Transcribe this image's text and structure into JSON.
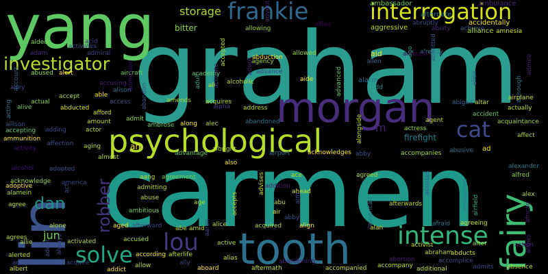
{
  "background_color": "#000000",
  "palette": "viridis",
  "words": [
    {
      "text": "graham",
      "color": "#2a9d8f"
    },
    {
      "text": "carmen",
      "color": "#1f9a8a"
    },
    {
      "text": "yang",
      "color": "#5ec962"
    },
    {
      "text": "lin",
      "color": "#3b528b"
    },
    {
      "text": "tooth",
      "color": "#2c728e"
    },
    {
      "text": "morgan",
      "color": "#472d7b"
    },
    {
      "text": "psychological",
      "color": "#b5de2b"
    },
    {
      "text": "fairy",
      "color": "#3fbc73"
    },
    {
      "text": "interrogation",
      "color": "#d8e219"
    },
    {
      "text": "frankie",
      "color": "#31688e"
    },
    {
      "text": "investigator",
      "color": "#b5de2b"
    },
    {
      "text": "intense",
      "color": "#35b779"
    },
    {
      "text": "solve",
      "color": "#22a884"
    },
    {
      "text": "lou",
      "color": "#453781"
    },
    {
      "text": "cat",
      "color": "#3e4a89"
    },
    {
      "text": "dan",
      "color": "#21918c"
    },
    {
      "text": "robber",
      "color": "#46337e"
    },
    {
      "text": "storage",
      "color": "#addc30"
    },
    {
      "text": "firefight",
      "color": "#25848e"
    },
    {
      "text": "bitter",
      "color": "#8fd744"
    },
    {
      "text": "m",
      "color": "#482173"
    },
    {
      "text": "jun",
      "color": "#7ad151"
    },
    {
      "text": "ambassador",
      "color": "#6ece58"
    },
    {
      "text": "ambulance",
      "color": "#482878"
    },
    {
      "text": "alternate",
      "color": "#287c8e"
    },
    {
      "text": "abruptly",
      "color": "#3e4989"
    },
    {
      "text": "adventure",
      "color": "#482475"
    },
    {
      "text": "affair",
      "color": "#440154"
    },
    {
      "text": "aggressive",
      "color": "#c2df23"
    },
    {
      "text": "ability",
      "color": "#472c7a"
    },
    {
      "text": "achieve",
      "color": "#38598c"
    },
    {
      "text": "accidentally",
      "color": "#fde725"
    },
    {
      "text": "alliance",
      "color": "#addc30"
    },
    {
      "text": "amnesia",
      "color": "#d2e21b"
    },
    {
      "text": "acid",
      "color": "#443a83"
    },
    {
      "text": "aided",
      "color": "#86d549"
    },
    {
      "text": "activates",
      "color": "#3b528b"
    },
    {
      "text": "adam",
      "color": "#472d7b"
    },
    {
      "text": "admiral",
      "color": "#414487"
    },
    {
      "text": "allowing",
      "color": "#9bd93c"
    },
    {
      "text": "allowed",
      "color": "#9bd93c"
    },
    {
      "text": "abduction",
      "color": "#fde725"
    },
    {
      "text": "agency",
      "color": "#a5db36"
    },
    {
      "text": "aid",
      "color": "#fde725"
    },
    {
      "text": "allen",
      "color": "#31688e"
    },
    {
      "text": "already",
      "color": "#2a788e"
    },
    {
      "text": "ambush",
      "color": "#440154"
    },
    {
      "text": "admitted",
      "color": "#3b528b"
    },
    {
      "text": "ago",
      "color": "#1fa088"
    },
    {
      "text": "admire",
      "color": "#481f70"
    },
    {
      "text": "accepted",
      "color": "#b8de29"
    },
    {
      "text": "adopt",
      "color": "#482475"
    },
    {
      "text": "aircraft",
      "color": "#75d054"
    },
    {
      "text": "alert",
      "color": "#fde725"
    },
    {
      "text": "abused",
      "color": "#8fd744"
    },
    {
      "text": "alley",
      "color": "#3e4a89"
    },
    {
      "text": "account",
      "color": "#33638d"
    },
    {
      "text": "academy",
      "color": "#5ec962"
    },
    {
      "text": "adult",
      "color": "#29af7f"
    },
    {
      "text": "ali",
      "color": "#c8e020"
    },
    {
      "text": "alcoholic",
      "color": "#b8de29"
    },
    {
      "text": "advance",
      "color": "#3f4788"
    },
    {
      "text": "aide",
      "color": "#fde725"
    },
    {
      "text": "alarm",
      "color": "#2d708e"
    },
    {
      "text": "add",
      "color": "#1e9b8a"
    },
    {
      "text": "advanced",
      "color": "#5ec962"
    },
    {
      "text": "alien",
      "color": "#38598c"
    },
    {
      "text": "although",
      "color": "#2c728e"
    },
    {
      "text": "admission",
      "color": "#3b0f70"
    },
    {
      "text": "accusing",
      "color": "#482071"
    },
    {
      "text": "access",
      "color": "#3e4989"
    },
    {
      "text": "able",
      "color": "#fde725"
    },
    {
      "text": "alison",
      "color": "#2c728e"
    },
    {
      "text": "acting",
      "color": "#2a788e"
    },
    {
      "text": "accept",
      "color": "#a2da37"
    },
    {
      "text": "actual",
      "color": "#8fd744"
    },
    {
      "text": "alive",
      "color": "#73d056"
    },
    {
      "text": "abducted",
      "color": "#d8e219"
    },
    {
      "text": "afford",
      "color": "#d2e21b"
    },
    {
      "text": "amount",
      "color": "#b5de2b"
    },
    {
      "text": "admit",
      "color": "#8fd744"
    },
    {
      "text": "abandon",
      "color": "#3b528b"
    },
    {
      "text": "amends",
      "color": "#addc30"
    },
    {
      "text": "acquires",
      "color": "#b5de2b"
    },
    {
      "text": "activate",
      "color": "#46337e"
    },
    {
      "text": "alpha",
      "color": "#443a83"
    },
    {
      "text": "address",
      "color": "#b8de29"
    },
    {
      "text": "abigail",
      "color": "#33638d"
    },
    {
      "text": "airplane",
      "color": "#c8e020"
    },
    {
      "text": "altar",
      "color": "#bddf26"
    },
    {
      "text": "actually",
      "color": "#c2df23"
    },
    {
      "text": "accident",
      "color": "#5ec962"
    },
    {
      "text": "acquaintance",
      "color": "#9bd93c"
    },
    {
      "text": "allison",
      "color": "#3b528b"
    },
    {
      "text": "adding",
      "color": "#3e4a89"
    },
    {
      "text": "actor",
      "color": "#bddf26"
    },
    {
      "text": "ambrose",
      "color": "#6ece58"
    },
    {
      "text": "along",
      "color": "#fde725"
    },
    {
      "text": "alec",
      "color": "#b8de29"
    },
    {
      "text": "abandoned",
      "color": "#2a788e"
    },
    {
      "text": "actress",
      "color": "#95d840"
    },
    {
      "text": "agent",
      "color": "#c8e020"
    },
    {
      "text": "affect",
      "color": "#addc30"
    },
    {
      "text": "accepting",
      "color": "#5ec962"
    },
    {
      "text": "ammunition",
      "color": "#fde725"
    },
    {
      "text": "affection",
      "color": "#3e4a89"
    },
    {
      "text": "activity",
      "color": "#3b0f70"
    },
    {
      "text": "aging",
      "color": "#addc30"
    },
    {
      "text": "ah",
      "color": "#fde725"
    },
    {
      "text": "advantage",
      "color": "#6ece58"
    },
    {
      "text": "albright",
      "color": "#addc30"
    },
    {
      "text": "airport",
      "color": "#2a788e"
    },
    {
      "text": "acknowledges",
      "color": "#fde725"
    },
    {
      "text": "alongside",
      "color": "#c8e020"
    },
    {
      "text": "abby",
      "color": "#3b528b"
    },
    {
      "text": "abusive",
      "color": "#2c728e"
    },
    {
      "text": "ad",
      "color": "#fde725"
    },
    {
      "text": "accompanies",
      "color": "#a5db36"
    },
    {
      "text": "alcohol",
      "color": "#3b0f70"
    },
    {
      "text": "adopted",
      "color": "#3b528b"
    },
    {
      "text": "almost",
      "color": "#addc30"
    },
    {
      "text": "also",
      "color": "#fde725"
    },
    {
      "text": "agreed",
      "color": "#addc30"
    },
    {
      "text": "alexander",
      "color": "#2a788e"
    },
    {
      "text": "alfred",
      "color": "#95d840"
    },
    {
      "text": "acknowledge",
      "color": "#9bd93c"
    },
    {
      "text": "america",
      "color": "#3e4989"
    },
    {
      "text": "aang",
      "color": "#b5de2b"
    },
    {
      "text": "agreement",
      "color": "#73d056"
    },
    {
      "text": "ace",
      "color": "#c2df23"
    },
    {
      "text": "addition",
      "color": "#482071"
    },
    {
      "text": "ahead",
      "color": "#d8e219"
    },
    {
      "text": "adoptive",
      "color": "#fde725"
    },
    {
      "text": "alamein",
      "color": "#addc30"
    },
    {
      "text": "act",
      "color": "#3e4989"
    },
    {
      "text": "admitting",
      "color": "#bddf26"
    },
    {
      "text": "accuses",
      "color": "#3b528b"
    },
    {
      "text": "abuse",
      "color": "#b5de2b"
    },
    {
      "text": "ambitious",
      "color": "#73d056"
    },
    {
      "text": "age",
      "color": "#addc30"
    },
    {
      "text": "accepts",
      "color": "#bddf26"
    },
    {
      "text": "advises",
      "color": "#c2df23"
    },
    {
      "text": "abu",
      "color": "#bddf26"
    },
    {
      "text": "air",
      "color": "#d2e21b"
    },
    {
      "text": "aim",
      "color": "#3e4989"
    },
    {
      "text": "abby",
      "color": "#3b528b"
    },
    {
      "text": "afterwards",
      "color": "#bddf26"
    },
    {
      "text": "ambushed",
      "color": "#2a788e"
    },
    {
      "text": "airfield",
      "color": "#29af7f"
    },
    {
      "text": "alex",
      "color": "#addc30"
    },
    {
      "text": "african",
      "color": "#482071"
    },
    {
      "text": "agree",
      "color": "#c2df23"
    },
    {
      "text": "alone",
      "color": "#addc30"
    },
    {
      "text": "aged",
      "color": "#fde725"
    },
    {
      "text": "afterward",
      "color": "#3e4989"
    },
    {
      "text": "abe",
      "color": "#bddf26"
    },
    {
      "text": "amid",
      "color": "#bddf26"
    },
    {
      "text": "aaron",
      "color": "#3e4989"
    },
    {
      "text": "alice",
      "color": "#bddf26"
    },
    {
      "text": "acquired",
      "color": "#addc30"
    },
    {
      "text": "align",
      "color": "#fde725"
    },
    {
      "text": "alan",
      "color": "#d2e21b"
    },
    {
      "text": "american",
      "color": "#2c728e"
    },
    {
      "text": "afraid",
      "color": "#2a788e"
    },
    {
      "text": "agreeing",
      "color": "#c8e020"
    },
    {
      "text": "alter",
      "color": "#a5db36"
    },
    {
      "text": "agrees",
      "color": "#bddf26"
    },
    {
      "text": "allie",
      "color": "#addc30"
    },
    {
      "text": "activated",
      "color": "#addc30"
    },
    {
      "text": "accused",
      "color": "#addc30"
    },
    {
      "text": "active",
      "color": "#addc30"
    },
    {
      "text": "activist",
      "color": "#bddf26"
    },
    {
      "text": "abraham",
      "color": "#bddf26"
    },
    {
      "text": "abducts",
      "color": "#d2e21b"
    },
    {
      "text": "action",
      "color": "#482071"
    },
    {
      "text": "allows",
      "color": "#482071"
    },
    {
      "text": "alerted",
      "color": "#c2df23"
    },
    {
      "text": "adopt",
      "color": "#3e4989"
    },
    {
      "text": "always",
      "color": "#3e4989"
    },
    {
      "text": "access",
      "color": "#3e4989"
    },
    {
      "text": "acquire",
      "color": "#3e4989"
    },
    {
      "text": "according",
      "color": "#fde725"
    },
    {
      "text": "afterlife",
      "color": "#c2df23"
    },
    {
      "text": "ally",
      "color": "#3e4989"
    },
    {
      "text": "alias",
      "color": "#c2df23"
    },
    {
      "text": "abandoning",
      "color": "#482071"
    },
    {
      "text": "abortion",
      "color": "#482071"
    },
    {
      "text": "accomplice",
      "color": "#3e4989"
    },
    {
      "text": "admits",
      "color": "#3e4989"
    },
    {
      "text": "absence",
      "color": "#addc30"
    },
    {
      "text": "albert",
      "color": "#c8e020"
    },
    {
      "text": "addict",
      "color": "#fde725"
    },
    {
      "text": "allow",
      "color": "#c2df23"
    },
    {
      "text": "aboard",
      "color": "#fde725"
    },
    {
      "text": "aftermath",
      "color": "#c8e020"
    },
    {
      "text": "accompanied",
      "color": "#c8e020"
    },
    {
      "text": "accompany",
      "color": "#c8e020"
    },
    {
      "text": "additional",
      "color": "#c8e020"
    }
  ]
}
